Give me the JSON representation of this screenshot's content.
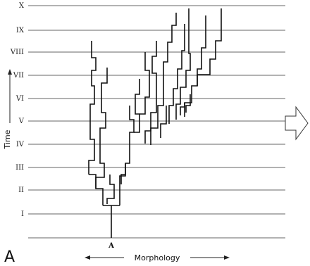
{
  "diagram": {
    "panel_label": "A",
    "root_label": "A",
    "y_axis_label": "Time",
    "x_axis_label": "Morphology",
    "levels": [
      "X",
      "IX",
      "VIII",
      "VII",
      "VI",
      "V",
      "IV",
      "III",
      "II",
      "I"
    ]
  }
}
